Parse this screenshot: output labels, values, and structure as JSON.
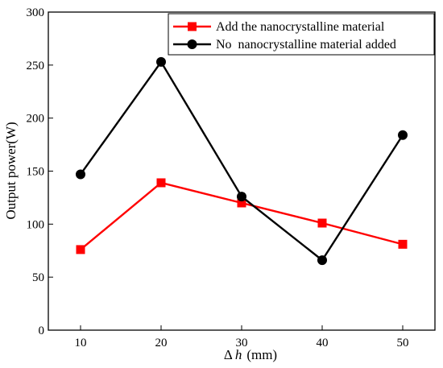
{
  "chart_data": {
    "type": "line",
    "x": [
      10,
      20,
      30,
      40,
      50
    ],
    "xlim": [
      6,
      54
    ],
    "ylim": [
      0,
      300
    ],
    "xticks": [
      "10",
      "20",
      "30",
      "40",
      "50"
    ],
    "yticks": [
      "0",
      "50",
      "100",
      "150",
      "200",
      "250",
      "300"
    ],
    "ytick_values": [
      0,
      50,
      100,
      150,
      200,
      250,
      300
    ],
    "xlabel_prefix": "Δ",
    "xlabel_var": "h",
    "xlabel_unit": "(mm)",
    "ylabel": "Output power(W)",
    "grid": false,
    "legend_position": "top-right",
    "series": [
      {
        "name": "Add the nanocrystalline material",
        "color": "#ff0000",
        "marker": "square",
        "values": [
          76,
          139,
          120,
          101,
          81
        ]
      },
      {
        "name": "No  nanocrystalline material added",
        "color": "#000000",
        "marker": "circle",
        "values": [
          147,
          253,
          126,
          66,
          184
        ]
      }
    ]
  }
}
